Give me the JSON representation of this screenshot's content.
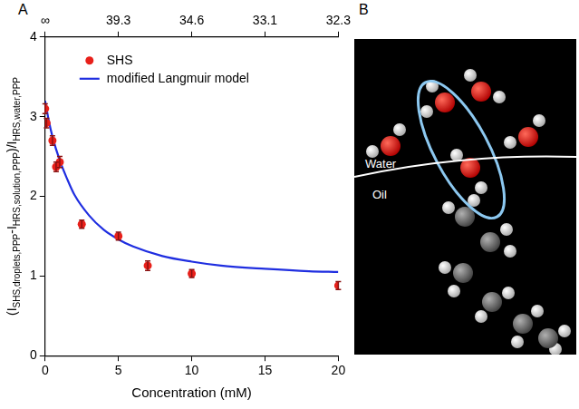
{
  "chart_data": {
    "type": "scatter",
    "xlabel": "Concentration (mM)",
    "ylabel": [
      {
        "text": "(I",
        "sub": false
      },
      {
        "text": "SHS,droplets,PPP",
        "sub": true
      },
      {
        "text": "-I",
        "sub": false
      },
      {
        "text": "HRS,solution,PPP",
        "sub": true
      },
      {
        "text": ")/I",
        "sub": false
      },
      {
        "text": "HRS,water,PPP",
        "sub": true
      }
    ],
    "series": [
      {
        "name": "SHS",
        "type": "scatter",
        "color": "#e8201a",
        "marker": "circle",
        "x": [
          0,
          0.1,
          0.5,
          0.75,
          1,
          2.5,
          5,
          7,
          10,
          20
        ],
        "values": [
          3.1,
          2.92,
          2.7,
          2.37,
          2.43,
          1.65,
          1.5,
          1.13,
          1.03,
          0.88
        ],
        "errors": [
          0.06,
          0.06,
          0.06,
          0.06,
          0.07,
          0.05,
          0.05,
          0.06,
          0.05,
          0.05
        ]
      },
      {
        "name": "modified Langmuir model",
        "type": "line",
        "color": "#1f2ee0",
        "line_style": "solid",
        "x": [
          0,
          0.25,
          0.5,
          1,
          1.5,
          2,
          3,
          4,
          5,
          6,
          8,
          10,
          12,
          15,
          18,
          20
        ],
        "values": [
          3.2,
          2.95,
          2.75,
          2.45,
          2.22,
          2.02,
          1.76,
          1.58,
          1.46,
          1.37,
          1.25,
          1.18,
          1.13,
          1.09,
          1.06,
          1.05
        ]
      }
    ],
    "xlim": [
      0,
      20
    ],
    "xticks": [
      0,
      5,
      10,
      15,
      20
    ],
    "x2lim": [
      0,
      20
    ],
    "x2ticks": [
      {
        "value": 0,
        "label": "∞"
      },
      {
        "value": 5,
        "label": "39.3"
      },
      {
        "value": 10,
        "label": "34.6"
      },
      {
        "value": 15,
        "label": "33.1"
      },
      {
        "value": 20,
        "label": "32.3"
      }
    ],
    "ylim": [
      0,
      4
    ],
    "yticks": [
      0,
      1,
      2,
      3,
      4
    ],
    "grid": false,
    "legend": "top-left"
  },
  "panel_labels": [
    "A",
    "B"
  ],
  "diagram": {
    "labels": {
      "water": "Water",
      "oil": "Oil"
    }
  }
}
